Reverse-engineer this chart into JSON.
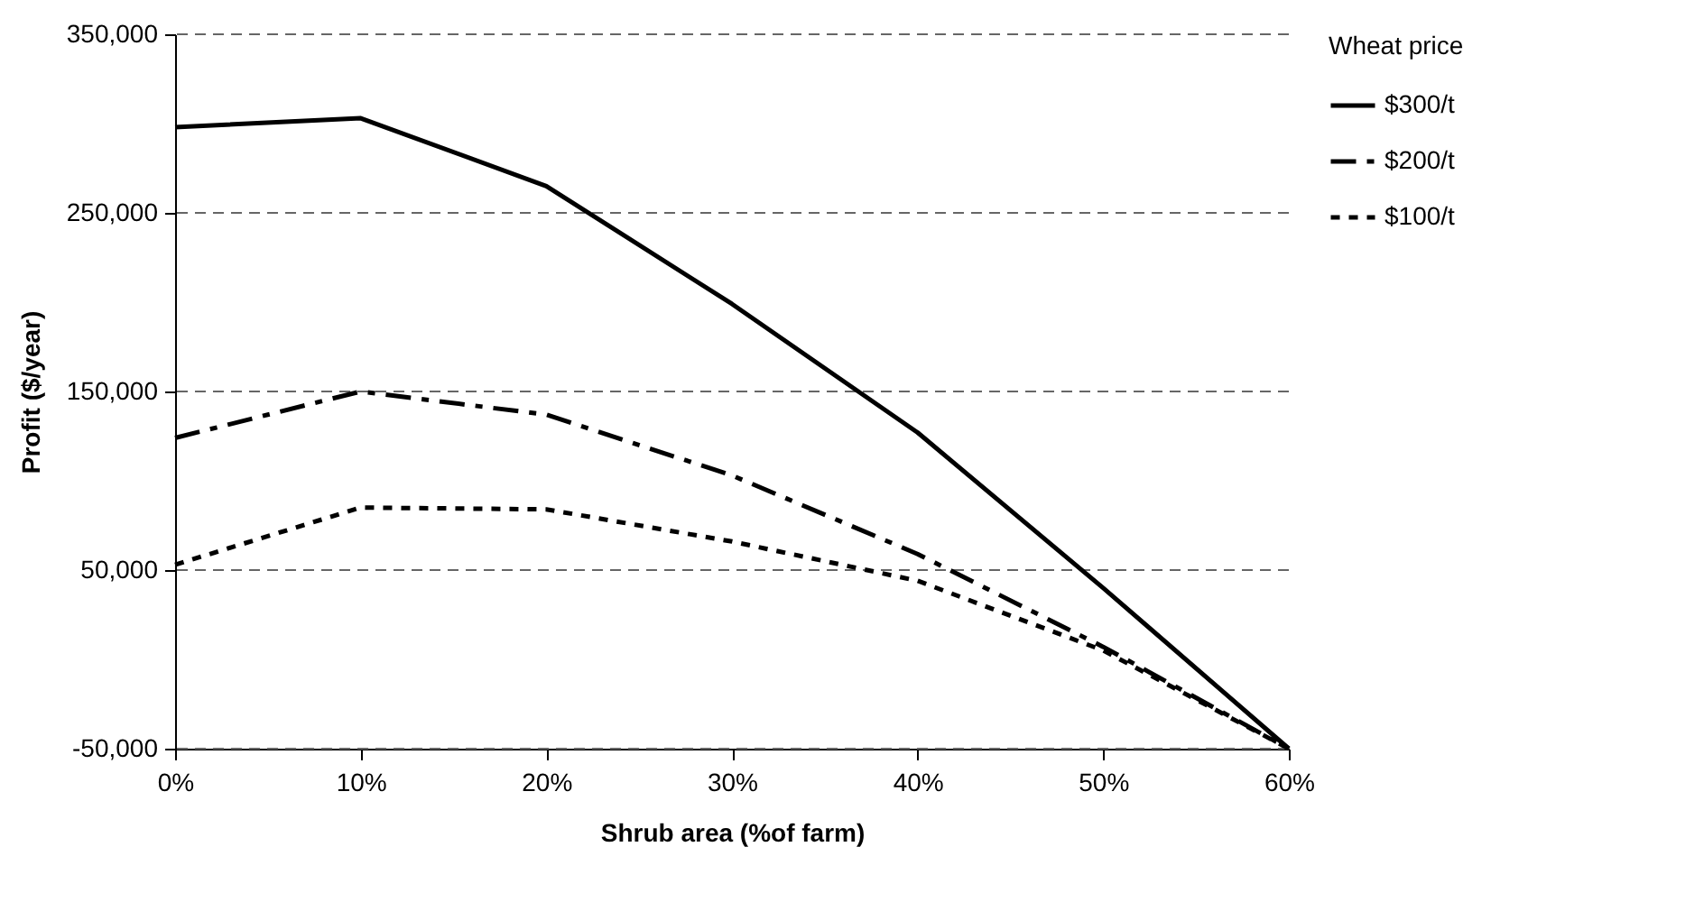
{
  "chart_data": {
    "type": "line",
    "xlabel": "Shrub area (%of farm)",
    "ylabel": "Profit ($/year)",
    "legend_title": "Wheat price",
    "x": [
      0,
      10,
      20,
      30,
      40,
      50,
      60
    ],
    "series": [
      {
        "name": "$300/t",
        "color": "#000000",
        "line_style": "solid",
        "values": [
          298000,
          303000,
          265000,
          199000,
          127000,
          40000,
          -50000
        ]
      },
      {
        "name": "$200/t",
        "color": "#000000",
        "line_style": "dashed",
        "values": [
          124000,
          150000,
          137000,
          103000,
          59000,
          7000,
          -50000
        ]
      },
      {
        "name": "$100/t",
        "color": "#000000",
        "line_style": "dotted",
        "values": [
          53000,
          85000,
          84000,
          66000,
          44000,
          5000,
          -50000
        ]
      }
    ],
    "xlim": [
      0,
      60
    ],
    "xticks": [
      {
        "value": 0,
        "label": "0%"
      },
      {
        "value": 10,
        "label": "10%"
      },
      {
        "value": 20,
        "label": "20%"
      },
      {
        "value": 30,
        "label": "30%"
      },
      {
        "value": 40,
        "label": "40%"
      },
      {
        "value": 50,
        "label": "50%"
      },
      {
        "value": 60,
        "label": "60%"
      }
    ],
    "ylim": [
      -50000,
      350000
    ],
    "yticks": [
      {
        "value": -50000,
        "label": "-50,000"
      },
      {
        "value": 50000,
        "label": "50,000"
      },
      {
        "value": 150000,
        "label": "150,000"
      },
      {
        "value": 250000,
        "label": "250,000"
      },
      {
        "value": 350000,
        "label": "350,000"
      }
    ],
    "grid": "y",
    "legend": "right",
    "marker": "none"
  }
}
